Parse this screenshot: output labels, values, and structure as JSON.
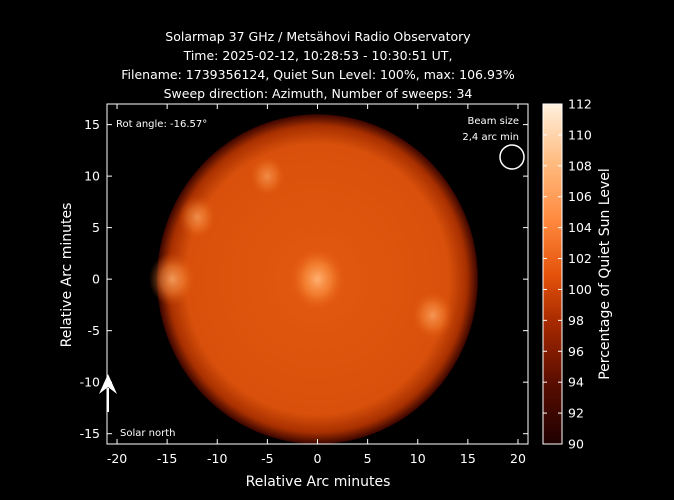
{
  "chart_data": {
    "type": "heatmap",
    "title": [
      "Solarmap 37 GHz / Metsähovi Radio Observatory",
      "Time: 2025-02-12, 10:28:53 - 10:30:51 UT,",
      "Filename: 1739356124, Quiet Sun Level: 100%, max: 106.93%",
      "Sweep direction: Azimuth, Number of sweeps: 34"
    ],
    "xlabel": "Relative Arc minutes",
    "ylabel": "Relative Arc minutes",
    "xlim": [
      -21,
      21
    ],
    "ylim": [
      -16,
      17
    ],
    "xticks": [
      "-20",
      "-15",
      "-10",
      "-5",
      "0",
      "5",
      "10",
      "15",
      "20"
    ],
    "yticks": [
      "15",
      "10",
      "5",
      "0",
      "-5",
      "-10",
      "-15"
    ],
    "colorbar": {
      "label": "Percentage of Quiet Sun Level",
      "range": [
        90,
        112
      ],
      "ticks": [
        "112",
        "110",
        "108",
        "106",
        "104",
        "102",
        "100",
        "98",
        "96",
        "94",
        "92",
        "90"
      ]
    },
    "disk": {
      "center": [
        0,
        0
      ],
      "radius_arcmin": 16,
      "quiet_level": 100,
      "max_level": 106.93
    },
    "bright_regions": [
      {
        "x": 0,
        "y": 0,
        "level": 106.9
      },
      {
        "x": -14.5,
        "y": 0,
        "level": 104.5
      },
      {
        "x": 11.5,
        "y": -3.5,
        "level": 103.5
      },
      {
        "x": -12,
        "y": 6,
        "level": 102.5
      },
      {
        "x": -5,
        "y": 10,
        "level": 102
      }
    ],
    "annotations": {
      "rotation": "Rot angle: -16.57°",
      "beam_size_title": "Beam size",
      "beam_size_value": "2,4 arc min",
      "solar_north": "Solar north"
    }
  },
  "colors": {
    "background": "#000000",
    "foreground": "#ffffff",
    "colormap": [
      "#1f0000",
      "#5a0d00",
      "#a82a00",
      "#e5530b",
      "#ff8a40",
      "#ffbc80",
      "#fff0dd"
    ]
  }
}
